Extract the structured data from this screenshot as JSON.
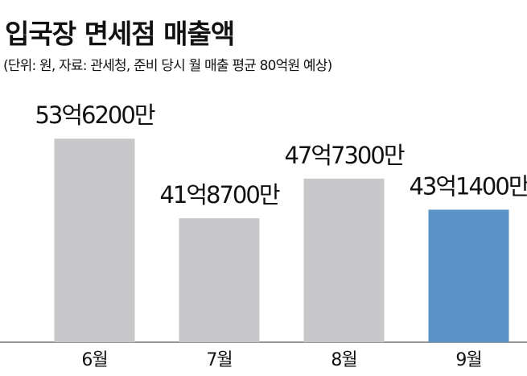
{
  "chart_data": {
    "type": "bar",
    "title": "입국장 면세점 매출액",
    "subtitle": "(단위: 원, 자료: 관세청, 준비 당시 월 매출 평균 80억원 예상)",
    "categories": [
      "6월",
      "7월",
      "8월",
      "9월"
    ],
    "values": [
      5362000000,
      4187000000,
      4773000000,
      4314000000
    ],
    "value_labels": [
      "53억6200만",
      "41억8700만",
      "47억7300만",
      "43억1400만"
    ],
    "colors": [
      "#c8c8ca",
      "#c8c8ca",
      "#c8c8ca",
      "#5b93c6"
    ],
    "ylim": [
      2360000000,
      5400000000
    ]
  }
}
